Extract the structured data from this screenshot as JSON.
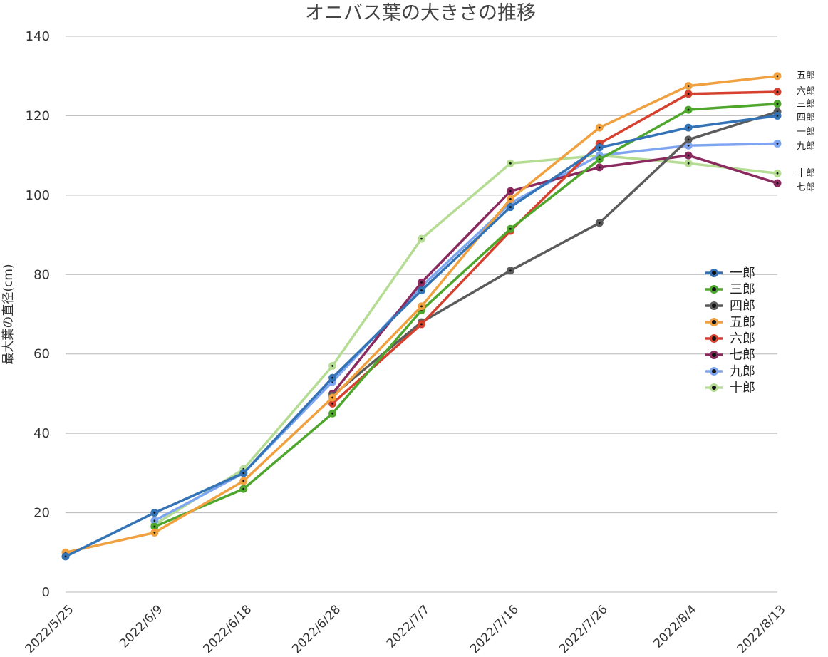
{
  "chart_data": {
    "type": "line",
    "title": "オニバス葉の大きさの推移",
    "xlabel": "",
    "ylabel": "最大葉の直径(cm)",
    "ylim": [
      0,
      140
    ],
    "yticks": [
      0,
      20,
      40,
      60,
      80,
      100,
      120,
      140
    ],
    "grid": true,
    "legend_position": "right",
    "categories": [
      "2022/5/25",
      "2022/6/9",
      "2022/6/18",
      "2022/6/28",
      "2022/7/7",
      "2022/7/16",
      "2022/7/26",
      "2022/8/4",
      "2022/8/13"
    ],
    "series": [
      {
        "name": "十郎",
        "color": "#b5dc93",
        "values": [
          null,
          17,
          31,
          57,
          89,
          108,
          110,
          108,
          105.5
        ]
      },
      {
        "name": "九郎",
        "color": "#7ea6f0",
        "values": [
          null,
          18,
          30,
          53,
          77,
          98,
          110,
          112.5,
          113
        ]
      },
      {
        "name": "七郎",
        "color": "#8a2a5e",
        "values": [
          null,
          null,
          null,
          50,
          78,
          101,
          107,
          110,
          103
        ]
      },
      {
        "name": "四郎",
        "color": "#5b5b5b",
        "values": [
          null,
          null,
          null,
          49.5,
          68,
          81,
          93,
          114,
          121
        ]
      },
      {
        "name": "六郎",
        "color": "#d6402f",
        "values": [
          null,
          null,
          null,
          47.5,
          67.5,
          91,
          113,
          125.5,
          126
        ]
      },
      {
        "name": "三郎",
        "color": "#4ea62c",
        "values": [
          null,
          16.5,
          26,
          45,
          71,
          91.5,
          109,
          121.5,
          123
        ]
      },
      {
        "name": "五郎",
        "color": "#f0a03e",
        "values": [
          10,
          15,
          28,
          49,
          72,
          99,
          117,
          127.5,
          130
        ]
      },
      {
        "name": "一郎",
        "color": "#3474b6",
        "values": [
          9,
          20,
          30,
          54,
          76,
          97,
          112,
          117,
          120
        ]
      }
    ],
    "legend_order": [
      "一郎",
      "三郎",
      "四郎",
      "五郎",
      "六郎",
      "七郎",
      "九郎",
      "十郎"
    ],
    "end_labels": [
      {
        "name": "五郎",
        "text": "五郎"
      },
      {
        "name": "六郎",
        "text": "六郎"
      },
      {
        "name": "三郎",
        "text": "三郎"
      },
      {
        "name": "四郎",
        "text": "四郎"
      },
      {
        "name": "一郎",
        "text": "一郎"
      },
      {
        "name": "九郎",
        "text": "九郎"
      },
      {
        "name": "十郎",
        "text": "十郎"
      },
      {
        "name": "七郎",
        "text": "七郎"
      }
    ]
  }
}
